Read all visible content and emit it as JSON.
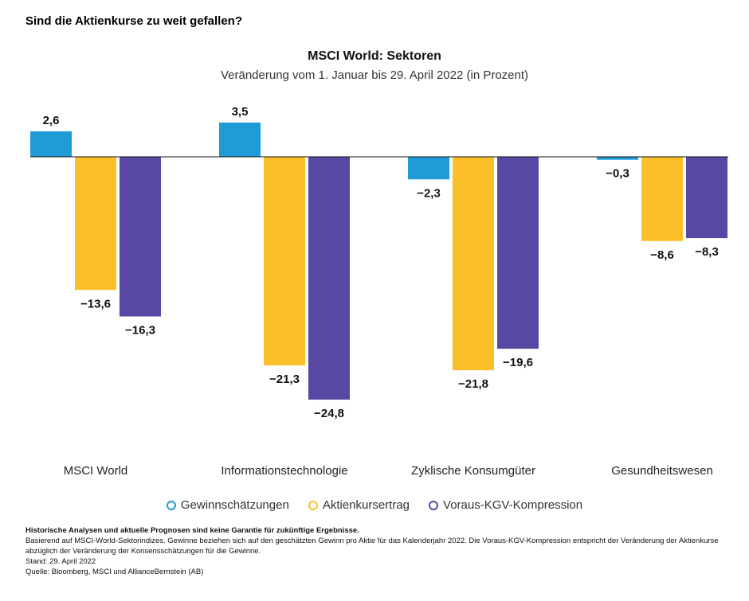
{
  "headline": "Sind die Aktienkurse zu weit gefallen?",
  "chart_data": {
    "type": "bar",
    "title": "MSCI World: Sektoren",
    "subtitle": "Veränderung vom 1. Januar bis 29. April 2022 (in Prozent)",
    "categories": [
      "MSCI World",
      "Informationstechnologie",
      "Zyklische Konsumgüter",
      "Gesundheitswesen"
    ],
    "series": [
      {
        "name": "Gewinnschätzungen",
        "color": "#1f9bd7",
        "values": [
          2.6,
          3.5,
          -2.3,
          -0.3
        ],
        "labels": [
          "2,6",
          "3,5",
          "−2,3",
          "−0,3"
        ]
      },
      {
        "name": "Aktienkursertrag",
        "color": "#fbbf2a",
        "values": [
          -13.6,
          -21.3,
          -21.8,
          -8.6
        ],
        "labels": [
          "−13,6",
          "−21,3",
          "−21,8",
          "−8,6"
        ]
      },
      {
        "name": "Voraus-KGV-Kompression",
        "color": "#5848a3",
        "values": [
          -16.3,
          -24.8,
          -19.6,
          -8.3
        ],
        "labels": [
          "−16,3",
          "−24,8",
          "−19,6",
          "−8,3"
        ]
      }
    ],
    "legend": "bottom",
    "grid": false
  },
  "notes": {
    "disclaimer": "Historische Analysen und aktuelle Prognosen sind keine Garantie für zukünftige Ergebnisse.",
    "basis": "Basierend auf MSCI-World-Sektorindizes. Gewinne beziehen sich auf den geschätzten Gewinn pro Aktie für das Kalenderjahr 2022. Die Voraus-KGV-Kompression entspricht der Veränderung der Aktienkurse abzüglich der Veränderung der Konsensschätzungen für die Gewinne.",
    "date": "Stand: 29. April 2022",
    "source": "Quelle: Bloomberg, MSCI und AllianceBernstein (AB)"
  }
}
